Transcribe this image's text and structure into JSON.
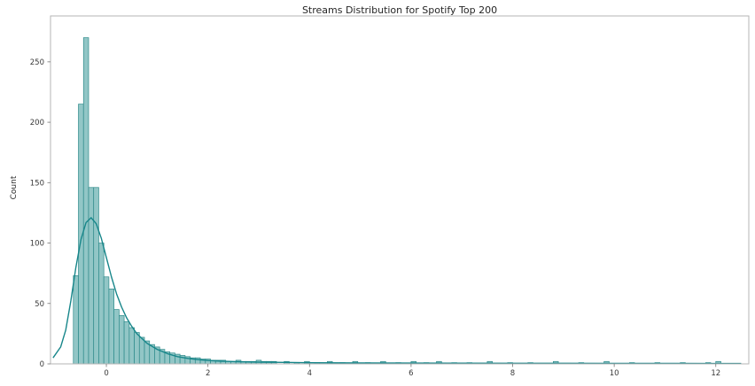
{
  "chart_data": {
    "type": "bar",
    "subtype": "histogram-with-kde",
    "title": "Streams Distribution for Spotify Top 200",
    "xlabel": "",
    "ylabel": "Count",
    "xlim": [
      -1.1,
      12.65
    ],
    "ylim": [
      0,
      288
    ],
    "x_ticks": [
      0,
      2,
      4,
      6,
      8,
      10,
      12
    ],
    "y_ticks": [
      0,
      50,
      100,
      150,
      200,
      250
    ],
    "grid": false,
    "legend_position": "none",
    "colors": {
      "bar_fill": "#92c6c6",
      "bar_edge": "#2e8b8b",
      "kde_line": "#17868a",
      "spine": "#b6b6b6",
      "tick_mark": "#767676",
      "text": "#3a3a3a"
    },
    "bars": {
      "bin_width": 0.1,
      "dense_start": -0.65,
      "dense_counts": [
        73,
        215,
        270,
        146,
        146,
        100,
        72,
        62,
        45,
        40,
        35,
        30,
        26,
        22,
        19,
        16,
        14,
        12,
        10,
        9,
        8,
        7,
        6,
        5,
        5,
        4,
        4,
        3,
        3,
        3,
        2,
        2,
        3,
        2,
        2,
        2,
        3,
        2,
        2,
        2
      ],
      "tail": [
        {
          "x": 3.5,
          "count": 2
        },
        {
          "x": 3.7,
          "count": 1
        },
        {
          "x": 3.9,
          "count": 2
        },
        {
          "x": 4.1,
          "count": 1
        },
        {
          "x": 4.35,
          "count": 2
        },
        {
          "x": 4.6,
          "count": 1
        },
        {
          "x": 4.85,
          "count": 2
        },
        {
          "x": 5.1,
          "count": 1
        },
        {
          "x": 5.4,
          "count": 2
        },
        {
          "x": 5.7,
          "count": 1
        },
        {
          "x": 6.0,
          "count": 2
        },
        {
          "x": 6.25,
          "count": 1
        },
        {
          "x": 6.5,
          "count": 2
        },
        {
          "x": 6.8,
          "count": 1
        },
        {
          "x": 7.1,
          "count": 1
        },
        {
          "x": 7.5,
          "count": 2
        },
        {
          "x": 7.9,
          "count": 1
        },
        {
          "x": 8.3,
          "count": 1
        },
        {
          "x": 8.8,
          "count": 2
        },
        {
          "x": 9.3,
          "count": 1
        },
        {
          "x": 9.8,
          "count": 2
        },
        {
          "x": 10.3,
          "count": 1
        },
        {
          "x": 10.8,
          "count": 1
        },
        {
          "x": 11.3,
          "count": 1
        },
        {
          "x": 11.8,
          "count": 1
        },
        {
          "x": 12.0,
          "count": 2
        }
      ]
    },
    "kde": [
      [
        -1.05,
        5
      ],
      [
        -0.9,
        14
      ],
      [
        -0.8,
        28
      ],
      [
        -0.7,
        52
      ],
      [
        -0.6,
        80
      ],
      [
        -0.5,
        103
      ],
      [
        -0.4,
        117
      ],
      [
        -0.3,
        121
      ],
      [
        -0.2,
        116
      ],
      [
        -0.1,
        104
      ],
      [
        0.0,
        88
      ],
      [
        0.1,
        72
      ],
      [
        0.2,
        58
      ],
      [
        0.3,
        47
      ],
      [
        0.4,
        38
      ],
      [
        0.5,
        31
      ],
      [
        0.6,
        25
      ],
      [
        0.8,
        17
      ],
      [
        1.0,
        12
      ],
      [
        1.2,
        8.5
      ],
      [
        1.4,
        6
      ],
      [
        1.6,
        4.5
      ],
      [
        1.8,
        3.5
      ],
      [
        2.0,
        2.8
      ],
      [
        2.3,
        2.2
      ],
      [
        2.6,
        1.8
      ],
      [
        3.0,
        1.4
      ],
      [
        3.5,
        1.2
      ],
      [
        4.0,
        1.0
      ],
      [
        5.0,
        0.8
      ],
      [
        6.0,
        0.7
      ],
      [
        7.0,
        0.6
      ],
      [
        8.0,
        0.5
      ],
      [
        9.0,
        0.5
      ],
      [
        10.0,
        0.4
      ],
      [
        11.0,
        0.4
      ],
      [
        12.0,
        0.3
      ],
      [
        12.5,
        0.3
      ]
    ]
  }
}
